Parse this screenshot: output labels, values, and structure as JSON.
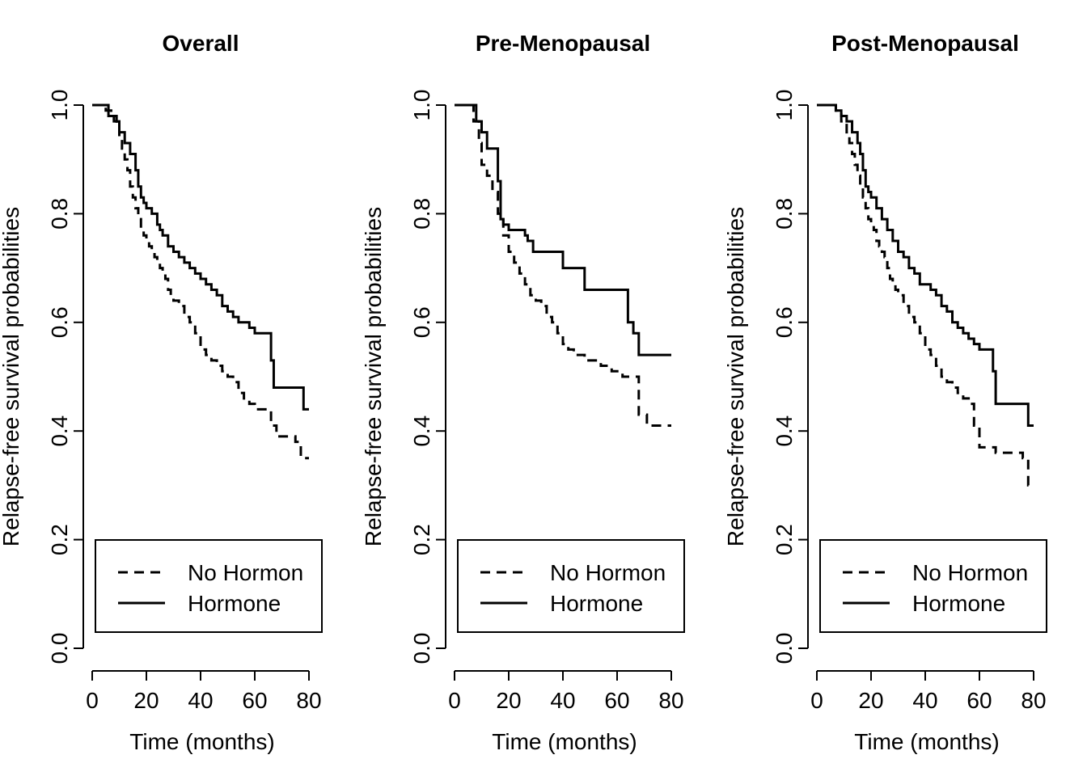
{
  "chart_data": [
    {
      "type": "line",
      "title": "Overall",
      "xlabel": "Time (months)",
      "ylabel": "Relapse-free survival probabilities",
      "xlim": [
        0,
        80
      ],
      "ylim": [
        0,
        1
      ],
      "xticks": [
        "0",
        "20",
        "40",
        "60",
        "80"
      ],
      "yticks": [
        "0.0",
        "0.2",
        "0.4",
        "0.6",
        "0.8",
        "1.0"
      ],
      "legend": {
        "placement": "bottom-right",
        "entries": [
          "No Hormon",
          "Hormone"
        ]
      },
      "series": [
        {
          "name": "No Hormon",
          "line_style": "dashed",
          "x": [
            0,
            3,
            5,
            7,
            9,
            10,
            11,
            12,
            13,
            14,
            15,
            16,
            17,
            18,
            19,
            20,
            21,
            22,
            23,
            24,
            25,
            26,
            27,
            28,
            29,
            30,
            32,
            34,
            36,
            38,
            40,
            42,
            44,
            46,
            48,
            50,
            52,
            54,
            56,
            58,
            60,
            62,
            66,
            68,
            72,
            75,
            77,
            80
          ],
          "y": [
            1.0,
            1.0,
            0.99,
            0.98,
            0.96,
            0.94,
            0.92,
            0.9,
            0.88,
            0.85,
            0.83,
            0.81,
            0.79,
            0.77,
            0.76,
            0.75,
            0.74,
            0.73,
            0.72,
            0.71,
            0.7,
            0.69,
            0.68,
            0.66,
            0.65,
            0.64,
            0.63,
            0.61,
            0.6,
            0.58,
            0.55,
            0.54,
            0.53,
            0.52,
            0.51,
            0.5,
            0.49,
            0.47,
            0.46,
            0.45,
            0.44,
            0.44,
            0.41,
            0.39,
            0.39,
            0.38,
            0.35,
            0.35
          ]
        },
        {
          "name": "Hormone",
          "line_style": "solid",
          "x": [
            0,
            5,
            6,
            8,
            10,
            12,
            14,
            16,
            17,
            18,
            19,
            20,
            22,
            24,
            25,
            26,
            28,
            30,
            32,
            34,
            36,
            38,
            40,
            42,
            44,
            46,
            48,
            50,
            52,
            54,
            56,
            58,
            60,
            64,
            66,
            67,
            70,
            78,
            80
          ],
          "y": [
            1.0,
            1.0,
            0.98,
            0.97,
            0.95,
            0.93,
            0.91,
            0.88,
            0.85,
            0.83,
            0.82,
            0.81,
            0.8,
            0.78,
            0.77,
            0.76,
            0.74,
            0.73,
            0.72,
            0.71,
            0.7,
            0.69,
            0.68,
            0.67,
            0.66,
            0.65,
            0.63,
            0.62,
            0.61,
            0.6,
            0.6,
            0.59,
            0.58,
            0.58,
            0.53,
            0.48,
            0.48,
            0.44,
            0.44
          ]
        }
      ]
    },
    {
      "type": "line",
      "title": "Pre-Menopausal",
      "xlabel": "Time (months)",
      "ylabel": "Relapse-free survival probabilities",
      "xlim": [
        0,
        80
      ],
      "ylim": [
        0,
        1
      ],
      "xticks": [
        "0",
        "20",
        "40",
        "60",
        "80"
      ],
      "yticks": [
        "0.0",
        "0.2",
        "0.4",
        "0.6",
        "0.8",
        "1.0"
      ],
      "legend": {
        "placement": "bottom-right",
        "entries": [
          "No Hormon",
          "Hormone"
        ]
      },
      "series": [
        {
          "name": "No Hormon",
          "line_style": "dashed",
          "x": [
            0,
            5,
            7,
            9,
            10,
            12,
            14,
            16,
            18,
            20,
            22,
            24,
            26,
            28,
            30,
            32,
            34,
            36,
            38,
            40,
            42,
            44,
            46,
            48,
            50,
            54,
            58,
            62,
            64,
            67,
            68,
            71,
            78,
            80
          ],
          "y": [
            1.0,
            1.0,
            0.97,
            0.93,
            0.89,
            0.87,
            0.84,
            0.8,
            0.76,
            0.73,
            0.71,
            0.69,
            0.67,
            0.65,
            0.64,
            0.63,
            0.61,
            0.6,
            0.58,
            0.56,
            0.55,
            0.54,
            0.54,
            0.53,
            0.53,
            0.52,
            0.51,
            0.5,
            0.5,
            0.5,
            0.43,
            0.41,
            0.41,
            0.41
          ]
        },
        {
          "name": "Hormone",
          "line_style": "solid",
          "x": [
            0,
            6,
            8,
            10,
            12,
            16,
            17,
            18,
            20,
            22,
            26,
            27,
            29,
            32,
            36,
            40,
            44,
            48,
            54,
            60,
            63,
            64,
            66,
            68,
            80
          ],
          "y": [
            1.0,
            1.0,
            0.97,
            0.95,
            0.92,
            0.86,
            0.79,
            0.78,
            0.77,
            0.77,
            0.76,
            0.75,
            0.73,
            0.73,
            0.73,
            0.7,
            0.7,
            0.66,
            0.66,
            0.66,
            0.66,
            0.6,
            0.58,
            0.54,
            0.54
          ]
        }
      ]
    },
    {
      "type": "line",
      "title": "Post-Menopausal",
      "xlabel": "Time (months)",
      "ylabel": "Relapse-free survival probabilities",
      "xlim": [
        0,
        80
      ],
      "ylim": [
        0,
        1
      ],
      "xticks": [
        "0",
        "20",
        "40",
        "60",
        "80"
      ],
      "yticks": [
        "0.0",
        "0.2",
        "0.4",
        "0.6",
        "0.8",
        "1.0"
      ],
      "legend": {
        "placement": "bottom-right",
        "entries": [
          "No Hormon",
          "Hormone"
        ]
      },
      "series": [
        {
          "name": "No Hormon",
          "line_style": "dashed",
          "x": [
            0,
            5,
            7,
            9,
            11,
            12,
            13,
            14,
            15,
            16,
            17,
            18,
            19,
            20,
            21,
            22,
            23,
            24,
            25,
            26,
            27,
            28,
            29,
            30,
            32,
            34,
            36,
            38,
            40,
            42,
            44,
            46,
            48,
            50,
            52,
            54,
            56,
            58,
            60,
            64,
            66,
            70,
            74,
            76,
            78,
            80
          ],
          "y": [
            1.0,
            1.0,
            0.99,
            0.97,
            0.95,
            0.93,
            0.91,
            0.89,
            0.87,
            0.85,
            0.83,
            0.81,
            0.79,
            0.78,
            0.77,
            0.75,
            0.74,
            0.73,
            0.72,
            0.7,
            0.68,
            0.67,
            0.66,
            0.65,
            0.63,
            0.61,
            0.6,
            0.58,
            0.55,
            0.54,
            0.52,
            0.5,
            0.49,
            0.48,
            0.47,
            0.46,
            0.45,
            0.41,
            0.37,
            0.37,
            0.36,
            0.36,
            0.36,
            0.35,
            0.3,
            0.3
          ]
        },
        {
          "name": "Hormone",
          "line_style": "solid",
          "x": [
            0,
            5,
            7,
            9,
            11,
            13,
            15,
            16,
            17,
            18,
            19,
            20,
            22,
            24,
            26,
            28,
            30,
            32,
            34,
            36,
            38,
            40,
            42,
            44,
            46,
            48,
            50,
            52,
            54,
            56,
            58,
            60,
            62,
            64,
            65,
            66,
            70,
            74,
            76,
            78,
            80
          ],
          "y": [
            1.0,
            1.0,
            0.99,
            0.98,
            0.97,
            0.95,
            0.93,
            0.91,
            0.88,
            0.85,
            0.84,
            0.83,
            0.81,
            0.79,
            0.77,
            0.75,
            0.73,
            0.72,
            0.7,
            0.69,
            0.67,
            0.67,
            0.66,
            0.65,
            0.63,
            0.62,
            0.6,
            0.59,
            0.58,
            0.57,
            0.56,
            0.55,
            0.55,
            0.55,
            0.51,
            0.45,
            0.45,
            0.45,
            0.45,
            0.41,
            0.41
          ]
        }
      ]
    }
  ]
}
